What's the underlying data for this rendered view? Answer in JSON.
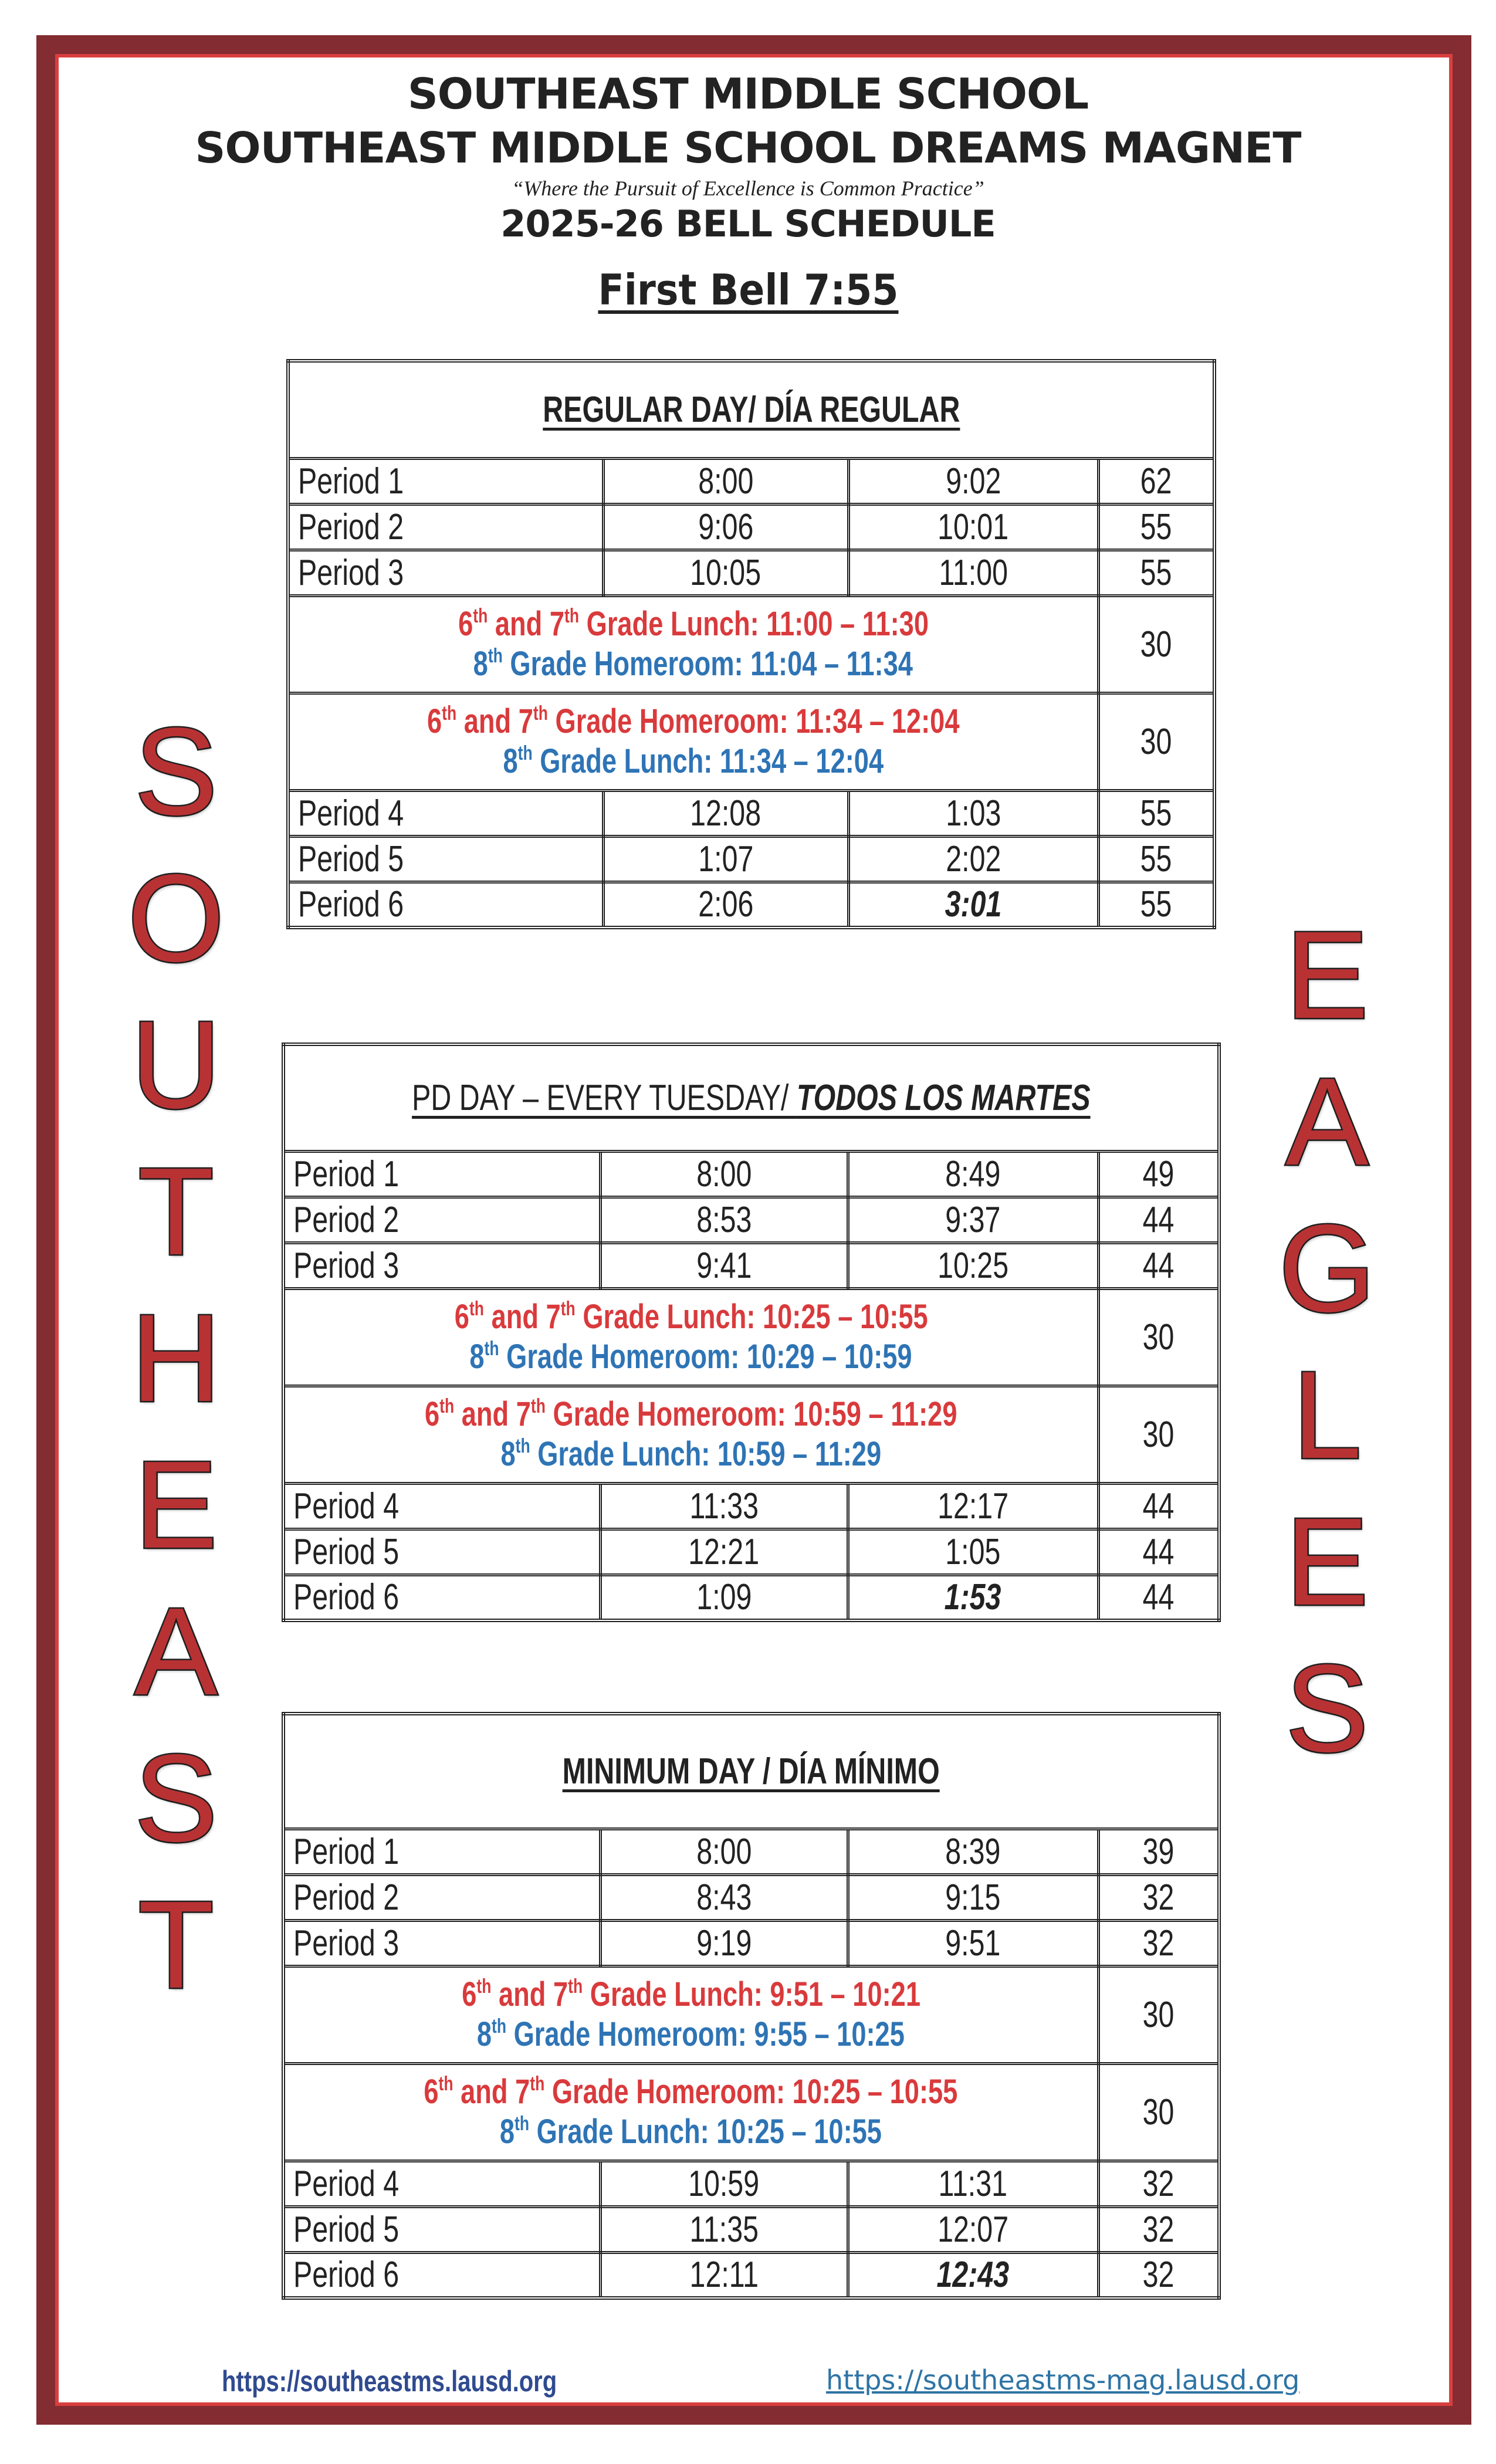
{
  "header": {
    "school": "SOUTHEAST MIDDLE SCHOOL",
    "magnet": "SOUTHEAST MIDDLE SCHOOL DREAMS MAGNET",
    "motto": "“Where the Pursuit of Excellence is Common Practice”",
    "schedule_title": "2025-26 BELL SCHEDULE",
    "first_bell": "First Bell 7:55"
  },
  "side_left": [
    "S",
    "O",
    "U",
    "T",
    "H",
    "E",
    "A",
    "S",
    "T"
  ],
  "side_right": [
    "E",
    "A",
    "G",
    "L",
    "E",
    "S"
  ],
  "colors": {
    "frame": "#832c31",
    "frame_line": "#d93f3f",
    "lunch_red": "#d93a3c",
    "homeroom_blue": "#2e74b5",
    "letters": "#b83234"
  },
  "schedules": [
    {
      "title_plain": "REGULAR DAY/ DÍA REGULAR",
      "title_italic": "",
      "title_bold": true,
      "rows": [
        {
          "type": "period",
          "name": "Period 1",
          "start": "8:00",
          "end": "9:02",
          "minutes": "62"
        },
        {
          "type": "period",
          "name": "Period 2",
          "start": "9:06",
          "end": "10:01",
          "minutes": "55"
        },
        {
          "type": "period",
          "name": "Period 3",
          "start": "10:05",
          "end": "11:00",
          "minutes": "55"
        },
        {
          "type": "lunch",
          "minutes": "30",
          "lines": [
            {
              "color": "red",
              "a": "6",
              "a_sup": "th",
              "mid": " and 7",
              "mid_sup": "th",
              "text": " Grade Lunch: 11:00 – 11:30"
            },
            {
              "color": "blue",
              "a": "8",
              "a_sup": "th",
              "mid": "",
              "mid_sup": "",
              "text": " Grade Homeroom: 11:04 – 11:34"
            }
          ]
        },
        {
          "type": "lunch",
          "minutes": "30",
          "lines": [
            {
              "color": "red",
              "a": "6",
              "a_sup": "th",
              "mid": " and 7",
              "mid_sup": "th",
              "text": " Grade Homeroom: 11:34 – 12:04"
            },
            {
              "color": "blue",
              "a": "8",
              "a_sup": "th",
              "mid": "",
              "mid_sup": "",
              "text": " Grade Lunch: 11:34 – 12:04"
            }
          ]
        },
        {
          "type": "period",
          "name": "Period 4",
          "start": "12:08",
          "end": "1:03",
          "minutes": "55"
        },
        {
          "type": "period",
          "name": "Period 5",
          "start": "1:07",
          "end": "2:02",
          "minutes": "55"
        },
        {
          "type": "period",
          "name": "Period 6",
          "start": "2:06",
          "end": "3:01",
          "minutes": "55",
          "end_emphasis": true
        }
      ]
    },
    {
      "title_plain": "PD DAY – EVERY TUESDAY/ ",
      "title_italic": "TODOS LOS MARTES",
      "title_bold": false,
      "rows": [
        {
          "type": "period",
          "name": "Period 1",
          "start": "8:00",
          "end": "8:49",
          "minutes": "49"
        },
        {
          "type": "period",
          "name": "Period 2",
          "start": "8:53",
          "end": "9:37",
          "minutes": "44"
        },
        {
          "type": "period",
          "name": "Period 3",
          "start": "9:41",
          "end": "10:25",
          "minutes": "44"
        },
        {
          "type": "lunch",
          "minutes": "30",
          "lines": [
            {
              "color": "red",
              "a": "6",
              "a_sup": "th",
              "mid": " and 7",
              "mid_sup": "th",
              "text": " Grade Lunch: 10:25 – 10:55"
            },
            {
              "color": "blue",
              "a": "8",
              "a_sup": "th",
              "mid": "",
              "mid_sup": "",
              "text": " Grade Homeroom: 10:29 – 10:59"
            }
          ]
        },
        {
          "type": "lunch",
          "minutes": "30",
          "lines": [
            {
              "color": "red",
              "a": "6",
              "a_sup": "th",
              "mid": " and 7",
              "mid_sup": "th",
              "text": " Grade Homeroom: 10:59 – 11:29"
            },
            {
              "color": "blue",
              "a": "8",
              "a_sup": "th",
              "mid": "",
              "mid_sup": "",
              "text": " Grade Lunch: 10:59 – 11:29"
            }
          ]
        },
        {
          "type": "period",
          "name": "Period 4",
          "start": "11:33",
          "end": "12:17",
          "minutes": "44"
        },
        {
          "type": "period",
          "name": "Period 5",
          "start": "12:21",
          "end": "1:05",
          "minutes": "44"
        },
        {
          "type": "period",
          "name": "Period 6",
          "start": "1:09",
          "end": "1:53",
          "minutes": "44",
          "end_emphasis": true
        }
      ]
    },
    {
      "title_plain": "MINIMUM DAY / DÍA MÍNIMO",
      "title_italic": "",
      "title_bold": true,
      "rows": [
        {
          "type": "period",
          "name": "Period 1",
          "start": "8:00",
          "end": "8:39",
          "minutes": "39"
        },
        {
          "type": "period",
          "name": "Period 2",
          "start": "8:43",
          "end": "9:15",
          "minutes": "32"
        },
        {
          "type": "period",
          "name": "Period 3",
          "start": "9:19",
          "end": "9:51",
          "minutes": "32"
        },
        {
          "type": "lunch",
          "minutes": "30",
          "lines": [
            {
              "color": "red",
              "a": "6",
              "a_sup": "th",
              "mid": " and 7",
              "mid_sup": "th",
              "text": " Grade Lunch: 9:51 – 10:21"
            },
            {
              "color": "blue",
              "a": "8",
              "a_sup": "th",
              "mid": "",
              "mid_sup": "",
              "text": " Grade Homeroom: 9:55 – 10:25"
            }
          ]
        },
        {
          "type": "lunch",
          "minutes": "30",
          "lines": [
            {
              "color": "red",
              "a": "6",
              "a_sup": "th",
              "mid": " and 7",
              "mid_sup": "th",
              "text": " Grade Homeroom: 10:25 – 10:55"
            },
            {
              "color": "blue",
              "a": "8",
              "a_sup": "th",
              "mid": "",
              "mid_sup": "",
              "text": " Grade Lunch: 10:25 – 10:55"
            }
          ]
        },
        {
          "type": "period",
          "name": "Period 4",
          "start": "10:59",
          "end": "11:31",
          "minutes": "32"
        },
        {
          "type": "period",
          "name": "Period 5",
          "start": "11:35",
          "end": "12:07",
          "minutes": "32"
        },
        {
          "type": "period",
          "name": "Period 6",
          "start": "12:11",
          "end": "12:43",
          "minutes": "32",
          "end_emphasis": true
        }
      ]
    }
  ],
  "footer": {
    "link_school": "https://southeastms.lausd.org",
    "link_magnet": "https://southeastms-mag.lausd.org"
  }
}
